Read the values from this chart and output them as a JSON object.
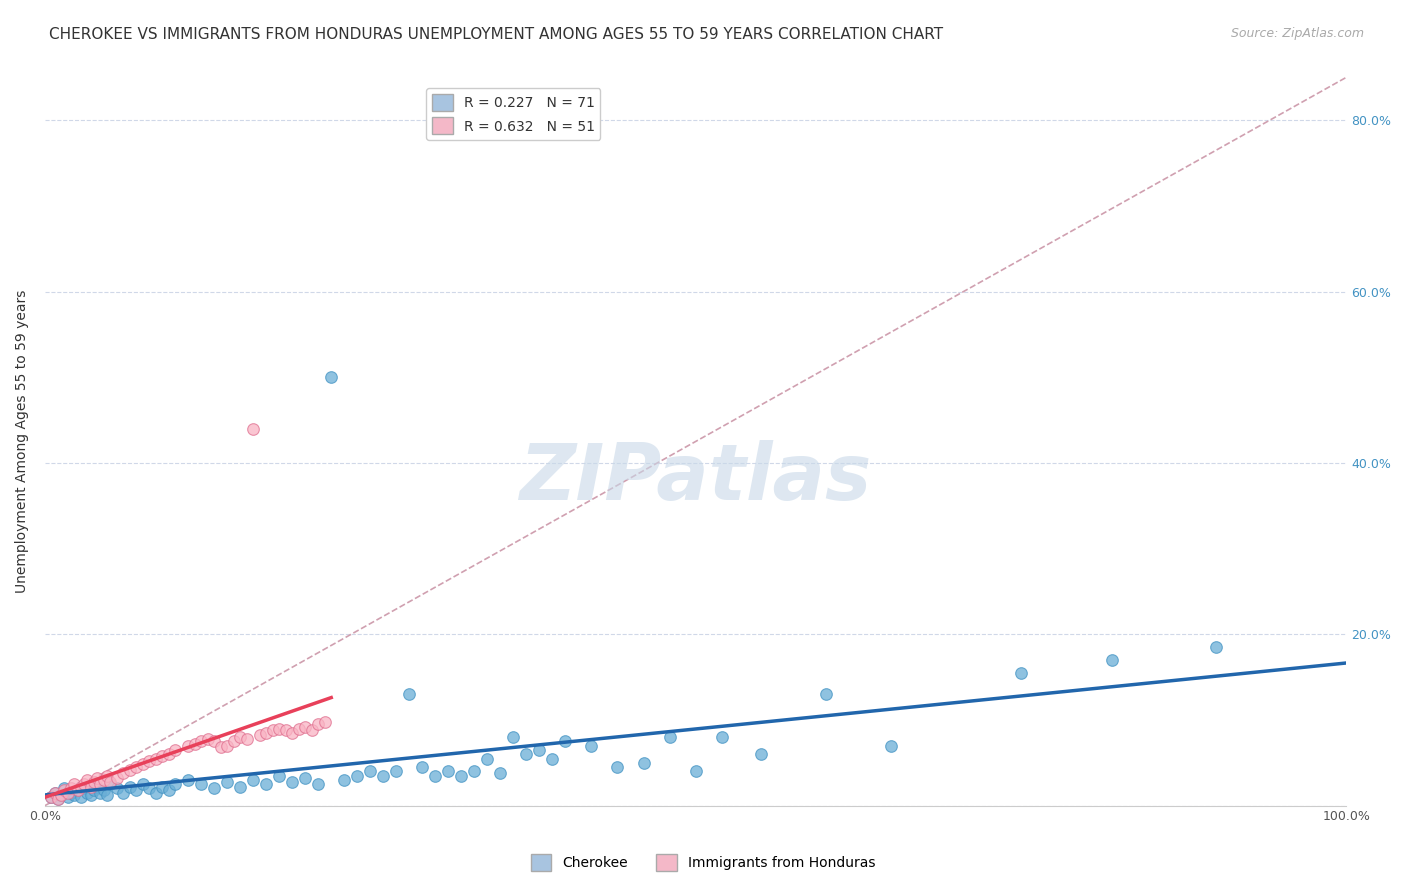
{
  "title": "CHEROKEE VS IMMIGRANTS FROM HONDURAS UNEMPLOYMENT AMONG AGES 55 TO 59 YEARS CORRELATION CHART",
  "source": "Source: ZipAtlas.com",
  "ylabel": "Unemployment Among Ages 55 to 59 years",
  "xlim": [
    0.0,
    1.0
  ],
  "ylim": [
    0.0,
    0.85
  ],
  "legend1_label": "R = 0.227   N = 71",
  "legend2_label": "R = 0.632   N = 51",
  "legend_color1": "#a8c4e0",
  "legend_color2": "#f4b8c8",
  "cherokee_color": "#6aaed6",
  "cherokee_edge": "#4393c3",
  "honduras_color": "#f9b4c4",
  "honduras_edge": "#e07090",
  "trendline_cherokee_color": "#2166ac",
  "trendline_honduras_color": "#e8405a",
  "diagonal_color": "#d0a0b0",
  "watermark": "ZIPatlas",
  "watermark_color": "#c8d8e8",
  "background_color": "#ffffff",
  "grid_color": "#d0d8e8",
  "title_fontsize": 11,
  "source_fontsize": 9,
  "legend_fontsize": 10,
  "ylabel_fontsize": 10,
  "cherokee_x": [
    0.005,
    0.008,
    0.01,
    0.012,
    0.015,
    0.018,
    0.02,
    0.022,
    0.025,
    0.028,
    0.03,
    0.032,
    0.035,
    0.038,
    0.04,
    0.042,
    0.045,
    0.048,
    0.05,
    0.055,
    0.06,
    0.065,
    0.07,
    0.075,
    0.08,
    0.085,
    0.09,
    0.095,
    0.1,
    0.11,
    0.12,
    0.13,
    0.14,
    0.15,
    0.16,
    0.17,
    0.18,
    0.19,
    0.2,
    0.21,
    0.22,
    0.23,
    0.24,
    0.25,
    0.26,
    0.27,
    0.28,
    0.29,
    0.3,
    0.31,
    0.32,
    0.33,
    0.34,
    0.35,
    0.36,
    0.37,
    0.38,
    0.39,
    0.4,
    0.42,
    0.44,
    0.46,
    0.48,
    0.5,
    0.52,
    0.55,
    0.6,
    0.65,
    0.75,
    0.82,
    0.9
  ],
  "cherokee_y": [
    0.01,
    0.015,
    0.008,
    0.012,
    0.02,
    0.01,
    0.015,
    0.012,
    0.018,
    0.01,
    0.02,
    0.015,
    0.012,
    0.018,
    0.022,
    0.015,
    0.018,
    0.012,
    0.025,
    0.02,
    0.015,
    0.022,
    0.018,
    0.025,
    0.02,
    0.015,
    0.022,
    0.018,
    0.025,
    0.03,
    0.025,
    0.02,
    0.028,
    0.022,
    0.03,
    0.025,
    0.035,
    0.028,
    0.032,
    0.025,
    0.5,
    0.03,
    0.035,
    0.04,
    0.035,
    0.04,
    0.13,
    0.045,
    0.035,
    0.04,
    0.035,
    0.04,
    0.055,
    0.038,
    0.08,
    0.06,
    0.065,
    0.055,
    0.075,
    0.07,
    0.045,
    0.05,
    0.08,
    0.04,
    0.08,
    0.06,
    0.13,
    0.07,
    0.155,
    0.17,
    0.185
  ],
  "honduras_x": [
    0.005,
    0.008,
    0.01,
    0.012,
    0.015,
    0.018,
    0.02,
    0.022,
    0.025,
    0.028,
    0.03,
    0.032,
    0.035,
    0.038,
    0.04,
    0.042,
    0.045,
    0.048,
    0.05,
    0.055,
    0.06,
    0.065,
    0.07,
    0.075,
    0.08,
    0.085,
    0.09,
    0.095,
    0.1,
    0.11,
    0.115,
    0.12,
    0.125,
    0.13,
    0.135,
    0.14,
    0.145,
    0.15,
    0.155,
    0.16,
    0.165,
    0.17,
    0.175,
    0.18,
    0.185,
    0.19,
    0.195,
    0.2,
    0.205,
    0.21,
    0.215
  ],
  "honduras_y": [
    0.01,
    0.015,
    0.008,
    0.012,
    0.018,
    0.015,
    0.02,
    0.025,
    0.018,
    0.022,
    0.025,
    0.03,
    0.022,
    0.028,
    0.032,
    0.025,
    0.03,
    0.035,
    0.028,
    0.032,
    0.038,
    0.042,
    0.045,
    0.048,
    0.052,
    0.055,
    0.058,
    0.06,
    0.065,
    0.07,
    0.072,
    0.075,
    0.078,
    0.075,
    0.068,
    0.07,
    0.075,
    0.08,
    0.078,
    0.44,
    0.082,
    0.085,
    0.088,
    0.09,
    0.088,
    0.085,
    0.09,
    0.092,
    0.088,
    0.095,
    0.098
  ]
}
